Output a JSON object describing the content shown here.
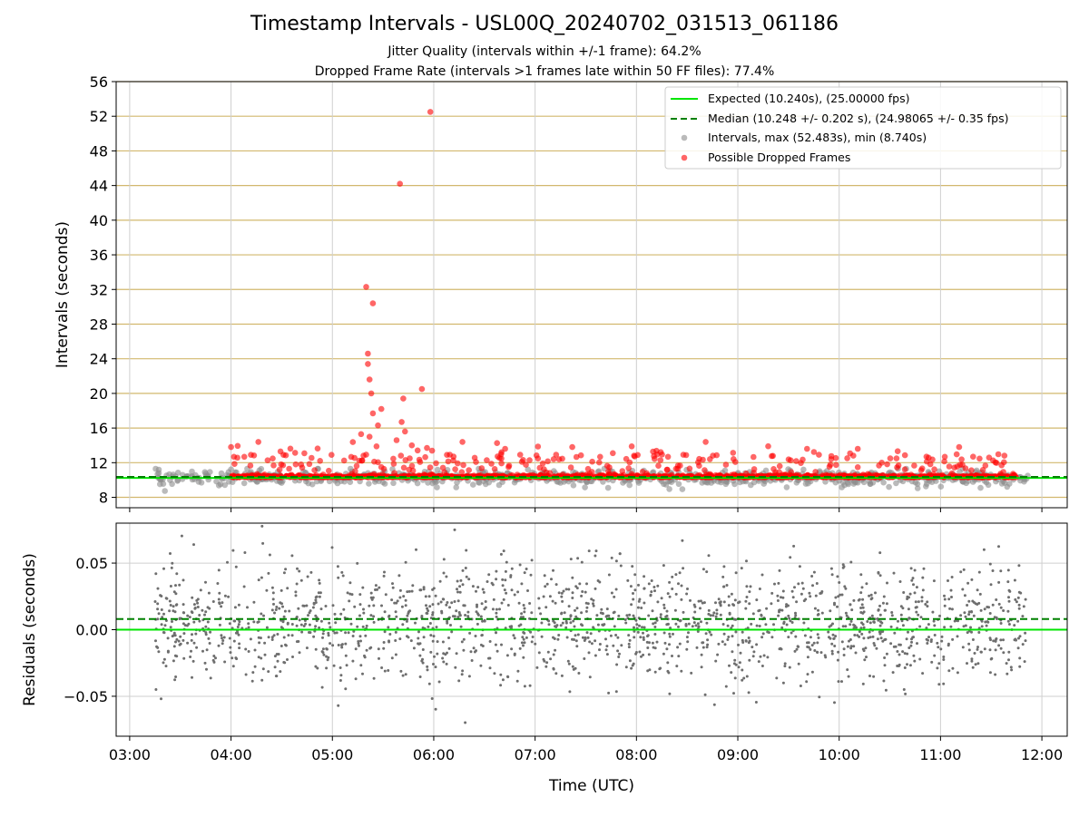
{
  "title": "Timestamp Intervals - USL00Q_20240702_031513_061186",
  "subtitle_1": "Jitter Quality (intervals within +/-1 frame): 64.2%",
  "subtitle_2": "Dropped Frame Rate (intervals >1 frames late within 50 FF files): 77.4%",
  "colors": {
    "expected_line": "#00e600",
    "median_line": "#008000",
    "intervals_points": "#8c8c8c",
    "dropped_points": "#ff0000",
    "residual_points": "#6e6e6e",
    "frame_grid": "#d2b86e",
    "grid": "#cfcfcf"
  },
  "chart_data": [
    {
      "type": "scatter",
      "ylabel": "Intervals (seconds)",
      "xlim": [
        "02:52",
        "12:15"
      ],
      "ylim": [
        6.8,
        56
      ],
      "yticks": [
        "8",
        "12",
        "16",
        "20",
        "24",
        "28",
        "32",
        "36",
        "40",
        "44",
        "48",
        "52",
        "56"
      ],
      "grid": true,
      "legend_position": "top-right",
      "legend": [
        "Expected (10.240s), (25.00000 fps)",
        "Median (10.248 +/- 0.202 s), (24.98065 +/- 0.35 fps)",
        "Intervals, max (52.483s), min (8.740s)",
        "Possible Dropped Frames"
      ],
      "expected_interval": 10.24,
      "median_interval": 10.248,
      "median_std": 0.202,
      "x_range_data": [
        "03:15",
        "11:52"
      ],
      "series": [
        {
          "name": "Intervals, max (52.483s), min (8.740s)",
          "baseline": 10.24,
          "spread": [
            8.74,
            11.3
          ],
          "x_range": [
            "03:15",
            "11:52"
          ]
        },
        {
          "name": "Possible Dropped Frames",
          "baseline": 10.3,
          "x_range": [
            "04:00",
            "11:45"
          ],
          "notable_points": [
            {
              "x": "05:58",
              "y": 52.5
            },
            {
              "x": "05:40",
              "y": 44.2
            },
            {
              "x": "05:20",
              "y": 32.3
            },
            {
              "x": "05:24",
              "y": 30.4
            },
            {
              "x": "05:21",
              "y": 24.6
            },
            {
              "x": "05:21",
              "y": 23.4
            },
            {
              "x": "05:22",
              "y": 21.6
            },
            {
              "x": "05:23",
              "y": 20.0
            },
            {
              "x": "05:53",
              "y": 20.5
            },
            {
              "x": "05:42",
              "y": 19.4
            },
            {
              "x": "05:29",
              "y": 18.2
            },
            {
              "x": "05:24",
              "y": 17.7
            },
            {
              "x": "05:27",
              "y": 16.3
            },
            {
              "x": "05:41",
              "y": 16.7
            },
            {
              "x": "05:43",
              "y": 15.6
            },
            {
              "x": "05:17",
              "y": 15.3
            },
            {
              "x": "05:38",
              "y": 14.6
            },
            {
              "x": "05:22",
              "y": 15.0
            },
            {
              "x": "05:47",
              "y": 14.0
            },
            {
              "x": "05:56",
              "y": 13.7
            },
            {
              "x": "06:17",
              "y": 14.4
            },
            {
              "x": "07:22",
              "y": 13.8
            },
            {
              "x": "07:46",
              "y": 13.1
            },
            {
              "x": "08:41",
              "y": 14.4
            },
            {
              "x": "09:18",
              "y": 13.9
            },
            {
              "x": "09:41",
              "y": 13.6
            },
            {
              "x": "10:11",
              "y": 13.6
            },
            {
              "x": "11:11",
              "y": 13.8
            },
            {
              "x": "04:00",
              "y": 13.8
            }
          ]
        }
      ]
    },
    {
      "type": "scatter",
      "xlabel": "Time (UTC)",
      "ylabel": "Residuals (seconds)",
      "xlim": [
        "02:52",
        "12:15"
      ],
      "ylim": [
        -0.08,
        0.08
      ],
      "xticks": [
        "03:00",
        "04:00",
        "05:00",
        "06:00",
        "07:00",
        "08:00",
        "09:00",
        "10:00",
        "11:00",
        "12:00"
      ],
      "yticks": [
        "0.05",
        "0.00",
        "−0.05"
      ],
      "grid": true,
      "expected_residual": 0.0,
      "median_residual": 0.008,
      "series": [
        {
          "name": "Residuals",
          "center": 0.005,
          "spread": [
            -0.08,
            0.08
          ],
          "x_range": [
            "03:15",
            "11:52"
          ]
        }
      ]
    }
  ]
}
